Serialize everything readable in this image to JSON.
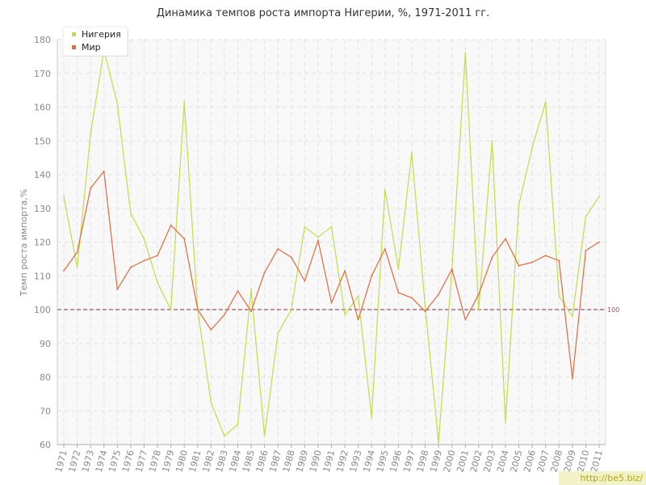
{
  "chart_data": {
    "type": "line",
    "title": "Динамика темпов роста импорта Нигерии, %, 1971-2011 гг.",
    "xlabel": "",
    "ylabel": "Темп роста импорта,%",
    "ylim": [
      60,
      180
    ],
    "yticks": [
      60,
      70,
      80,
      90,
      100,
      110,
      120,
      130,
      140,
      150,
      160,
      170,
      180
    ],
    "grid": true,
    "legend_position": "top-left",
    "x": [
      "1971",
      "1972",
      "1973",
      "1974",
      "1975",
      "1976",
      "1977",
      "1978",
      "1979",
      "1980",
      "1981",
      "1982",
      "1983",
      "1984",
      "1985",
      "1986",
      "1987",
      "1988",
      "1989",
      "1990",
      "1991",
      "1992",
      "1993",
      "1994",
      "1995",
      "1996",
      "1997",
      "1998",
      "1999",
      "2000",
      "2001",
      "2002",
      "2003",
      "2004",
      "2005",
      "2006",
      "2007",
      "2008",
      "2009",
      "2010",
      "2011"
    ],
    "series": [
      {
        "name": "Нигерия",
        "color": "#c2dc48",
        "values": [
          133.5,
          112.5,
          152,
          177,
          161,
          128.5,
          121,
          108,
          100,
          161.5,
          100,
          72.5,
          62.5,
          66,
          106,
          62.5,
          93,
          100,
          124.5,
          121.5,
          124.5,
          98.5,
          104,
          68,
          135.5,
          112,
          146.5,
          101,
          60.5,
          112,
          176,
          100,
          150,
          66.5,
          131,
          148,
          161.5,
          104,
          98,
          127.5,
          133.5
        ]
      },
      {
        "name": "Мир",
        "color": "#e06a3c",
        "values": [
          111.5,
          117,
          136,
          141,
          106,
          112.5,
          114.5,
          116,
          125,
          121,
          100,
          94,
          98.5,
          105.5,
          99.5,
          111,
          118,
          115.5,
          108.5,
          120.5,
          102,
          111.5,
          97,
          110,
          118,
          105,
          103.5,
          99.5,
          104.5,
          112,
          97,
          104.5,
          115.5,
          121,
          113,
          114,
          116,
          114.5,
          79.5,
          117.5,
          120
        ]
      }
    ],
    "reference_line": {
      "value": 100,
      "label": "100",
      "color": "#a0506a"
    }
  },
  "watermark": "http://be5.biz/"
}
